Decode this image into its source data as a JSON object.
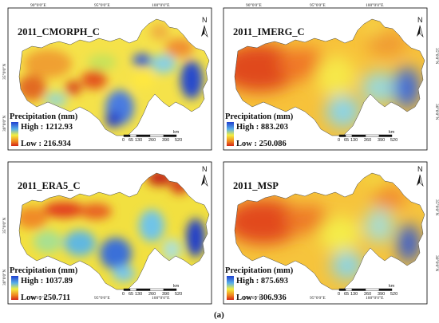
{
  "figure": {
    "caption": "(a)",
    "coord_labels": {
      "lon_90": "90°0'0\"E",
      "lon_95": "95°0'0\"E",
      "lon_100": "100°0'0\"E",
      "lat_30": "30°0'0\"N",
      "lat_35": "35°0'0\"N"
    },
    "scale_bar": {
      "ticks": [
        "0",
        "65",
        "130",
        "260",
        "390",
        "520"
      ],
      "unit": "km"
    },
    "north_label": "N",
    "colors": {
      "high": "#2040d0",
      "mid": "#f2ee40",
      "low": "#d42818",
      "frame": "#000000"
    }
  },
  "panels": [
    {
      "title": "2011_CMORPH_C",
      "legend": {
        "title": "Precipitation (mm)",
        "high_label": "High : 1212.93",
        "low_label": "Low : 216.934"
      }
    },
    {
      "title": "2011_IMERG_C",
      "legend": {
        "title": "Precipitation (mm)",
        "high_label": "High : 883.203",
        "low_label": "Low : 250.086"
      }
    },
    {
      "title": "2011_ERA5_C",
      "legend": {
        "title": "Precipitation (mm)",
        "high_label": "High : 1037.89",
        "low_label": "Low : 250.711"
      }
    },
    {
      "title": "2011_MSP",
      "legend": {
        "title": "Precipitation (mm)",
        "high_label": "High : 875.693",
        "low_label": "Low : 306.936"
      }
    }
  ]
}
